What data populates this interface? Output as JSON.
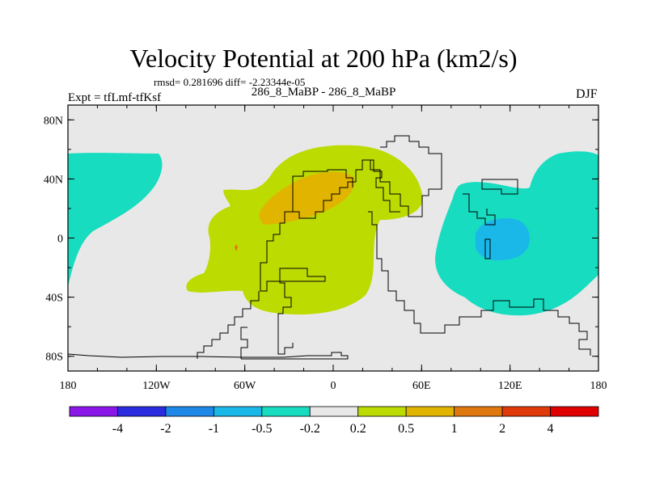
{
  "header": {
    "title": "Velocity Potential at 200 hPa (km2/s)",
    "stats": "rmsd= 0.281696 diff= -2.23344e-05",
    "experiment": "Expt = tfLmf-tfKsf",
    "cases": "286_8_MaBP - 286_8_MaBP",
    "season": "DJF"
  },
  "map": {
    "projection": "cylindrical equidistant",
    "lon_range": [
      -180,
      180
    ],
    "lat_range": [
      -90,
      90
    ],
    "x_ticks": [
      "180",
      "120W",
      "60W",
      "0",
      "60E",
      "120E",
      "180"
    ],
    "y_ticks": [
      "80N",
      "40N",
      "0",
      "40S",
      "80S"
    ],
    "background_color": "#e8e8e8",
    "coastline_color": "#000000"
  },
  "colorbar": {
    "labels": [
      "-4",
      "-2",
      "-1",
      "-0.5",
      "-0.2",
      "0.2",
      "0.5",
      "1",
      "2",
      "4"
    ],
    "colors": [
      "#8a17e8",
      "#2b2be0",
      "#1e88e8",
      "#1ab8e8",
      "#17dcc0",
      "#e8e8e8",
      "#bcdb00",
      "#e1b400",
      "#e07810",
      "#e03a0a",
      "#e00000"
    ]
  }
}
